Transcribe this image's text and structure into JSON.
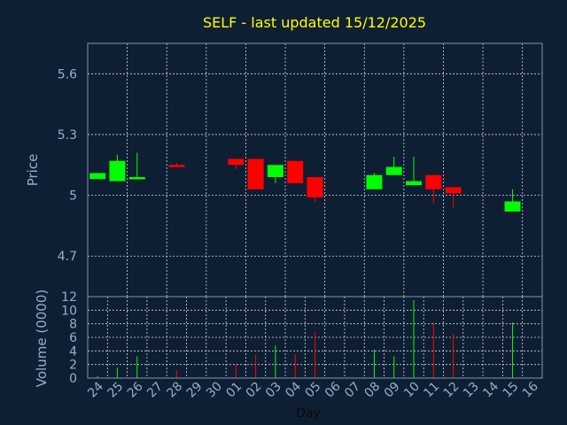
{
  "chart_data": [
    {
      "type": "candlestick",
      "title": "SELF - last updated 15/12/2025",
      "ylabel": "Price",
      "ylim": [
        4.5,
        5.75
      ],
      "yticks": [
        5.6,
        5.3,
        5,
        4.7
      ],
      "ytick_labels": [
        "5.6",
        "5.3",
        "5",
        "4.7"
      ],
      "grid": true,
      "up_color": "#00ff00",
      "down_color": "#ff0000",
      "categories": [
        "24",
        "25",
        "26",
        "27",
        "28",
        "29",
        "30",
        "01",
        "02",
        "03",
        "04",
        "05",
        "06",
        "07",
        "08",
        "09",
        "10",
        "11",
        "12",
        "13",
        "14",
        "15",
        "16"
      ],
      "candles": [
        {
          "day": "24",
          "open": 5.08,
          "high": 5.11,
          "low": 5.08,
          "close": 5.11
        },
        {
          "day": "25",
          "open": 5.07,
          "high": 5.2,
          "low": 5.07,
          "close": 5.17
        },
        {
          "day": "26",
          "open": 5.08,
          "high": 5.21,
          "low": 5.08,
          "close": 5.09
        },
        {
          "day": "28",
          "open": 5.15,
          "high": 5.16,
          "low": 5.14,
          "close": 5.14
        },
        {
          "day": "01",
          "open": 5.18,
          "high": 5.18,
          "low": 5.13,
          "close": 5.15
        },
        {
          "day": "02",
          "open": 5.18,
          "high": 5.18,
          "low": 5.03,
          "close": 5.03
        },
        {
          "day": "03",
          "open": 5.09,
          "high": 5.15,
          "low": 5.06,
          "close": 5.15
        },
        {
          "day": "04",
          "open": 5.17,
          "high": 5.17,
          "low": 5.06,
          "close": 5.06
        },
        {
          "day": "05",
          "open": 5.09,
          "high": 5.09,
          "low": 4.97,
          "close": 4.99
        },
        {
          "day": "08",
          "open": 5.03,
          "high": 5.11,
          "low": 5.03,
          "close": 5.1
        },
        {
          "day": "09",
          "open": 5.1,
          "high": 5.19,
          "low": 5.1,
          "close": 5.14
        },
        {
          "day": "10",
          "open": 5.05,
          "high": 5.19,
          "low": 5.05,
          "close": 5.07
        },
        {
          "day": "11",
          "open": 5.1,
          "high": 5.1,
          "low": 4.96,
          "close": 5.03
        },
        {
          "day": "12",
          "open": 5.04,
          "high": 5.04,
          "low": 4.94,
          "close": 5.01
        },
        {
          "day": "15",
          "open": 4.92,
          "high": 5.03,
          "low": 4.92,
          "close": 4.97
        }
      ]
    },
    {
      "type": "bar",
      "ylabel": "Volume (0000)",
      "xlabel": "Day",
      "ylim": [
        0,
        12
      ],
      "yticks": [
        0,
        2,
        4,
        6,
        8,
        10,
        12
      ],
      "ytick_labels": [
        "0",
        "2",
        "4",
        "6",
        "8",
        "10",
        "12"
      ],
      "grid": true,
      "categories": [
        "24",
        "25",
        "26",
        "27",
        "28",
        "29",
        "30",
        "01",
        "02",
        "03",
        "04",
        "05",
        "06",
        "07",
        "08",
        "09",
        "10",
        "11",
        "12",
        "13",
        "14",
        "15",
        "16"
      ],
      "bars": [
        {
          "day": "24",
          "value": 0.3,
          "direction": "up"
        },
        {
          "day": "25",
          "value": 1.5,
          "direction": "up"
        },
        {
          "day": "26",
          "value": 3.2,
          "direction": "up"
        },
        {
          "day": "28",
          "value": 1.1,
          "direction": "down"
        },
        {
          "day": "01",
          "value": 2.1,
          "direction": "down"
        },
        {
          "day": "02",
          "value": 3.4,
          "direction": "down"
        },
        {
          "day": "03",
          "value": 4.8,
          "direction": "up"
        },
        {
          "day": "04",
          "value": 3.5,
          "direction": "down"
        },
        {
          "day": "05",
          "value": 6.8,
          "direction": "down"
        },
        {
          "day": "08",
          "value": 4.2,
          "direction": "up"
        },
        {
          "day": "09",
          "value": 3.2,
          "direction": "up"
        },
        {
          "day": "10",
          "value": 11.5,
          "direction": "up"
        },
        {
          "day": "11",
          "value": 8.2,
          "direction": "down"
        },
        {
          "day": "12",
          "value": 6.5,
          "direction": "down"
        },
        {
          "day": "15",
          "value": 8.2,
          "direction": "up"
        }
      ]
    }
  ]
}
